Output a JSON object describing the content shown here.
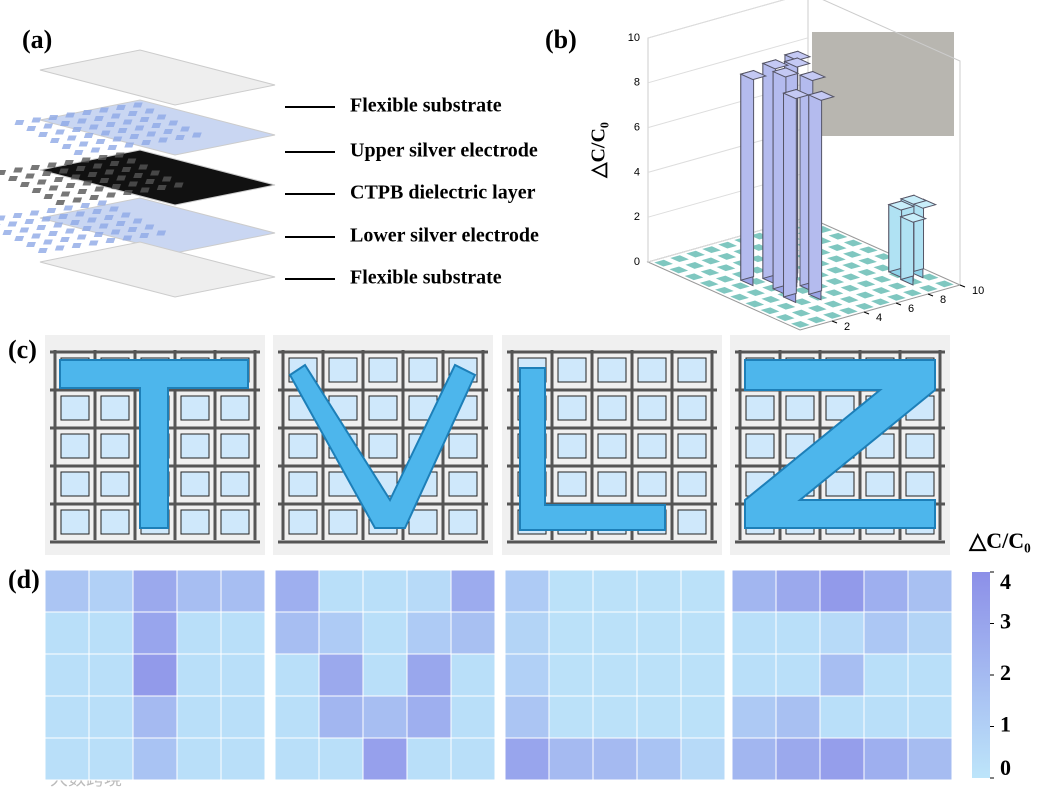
{
  "panels": {
    "a": "(a)",
    "b": "(b)",
    "c": "(c)",
    "d": "(d)"
  },
  "layers": [
    "Flexible substrate",
    "Upper silver electrode",
    "CTPB dielectric layer",
    "Lower silver electrode",
    "Flexible substrate"
  ],
  "chart_data": {
    "type": "bar3d",
    "zlabel": "△C/C₀",
    "zlim": [
      0,
      10
    ],
    "zticks": [
      0,
      2,
      4,
      6,
      8,
      10
    ],
    "floor_ticks": [
      2,
      4,
      6,
      8,
      10
    ],
    "values": [
      9.2,
      9.6,
      9.9,
      9.7,
      9.8,
      9.4,
      9.1,
      8.9,
      3.0,
      3.4,
      2.8,
      3.1
    ]
  },
  "heatmaps": {
    "label": "△C/C₀",
    "clim": [
      0,
      4
    ],
    "ticks": [
      0,
      1,
      2,
      3,
      4
    ],
    "maps": [
      [
        [
          1.5,
          1.0,
          2.8,
          1.8,
          1.8
        ],
        [
          0.3,
          0.3,
          3.0,
          0.3,
          0.3
        ],
        [
          0.3,
          0.3,
          3.5,
          0.3,
          0.3
        ],
        [
          0.3,
          0.3,
          2.0,
          0.3,
          0.3
        ],
        [
          0.3,
          0.3,
          1.6,
          0.3,
          0.3
        ]
      ],
      [
        [
          2.5,
          0.3,
          0.3,
          0.5,
          2.7
        ],
        [
          1.8,
          1.2,
          0.3,
          1.2,
          1.7
        ],
        [
          0.3,
          2.8,
          0.3,
          2.9,
          0.3
        ],
        [
          0.3,
          2.2,
          1.8,
          2.5,
          0.3
        ],
        [
          0.3,
          0.3,
          3.2,
          0.3,
          0.3
        ]
      ],
      [
        [
          1.2,
          0.2,
          0.2,
          0.2,
          0.2
        ],
        [
          0.8,
          0.2,
          0.2,
          0.2,
          0.2
        ],
        [
          1.0,
          0.2,
          0.2,
          0.2,
          0.2
        ],
        [
          1.5,
          0.2,
          0.2,
          0.2,
          0.2
        ],
        [
          3.0,
          2.0,
          2.0,
          1.6,
          0.5
        ]
      ],
      [
        [
          2.2,
          2.8,
          3.5,
          2.5,
          1.7
        ],
        [
          0.3,
          0.3,
          0.5,
          1.4,
          0.8
        ],
        [
          0.3,
          0.3,
          1.8,
          0.3,
          0.3
        ],
        [
          1.3,
          1.7,
          0.3,
          0.3,
          0.3
        ],
        [
          2.2,
          2.8,
          3.3,
          2.5,
          1.9
        ]
      ]
    ]
  },
  "watermark": "大数跨境"
}
